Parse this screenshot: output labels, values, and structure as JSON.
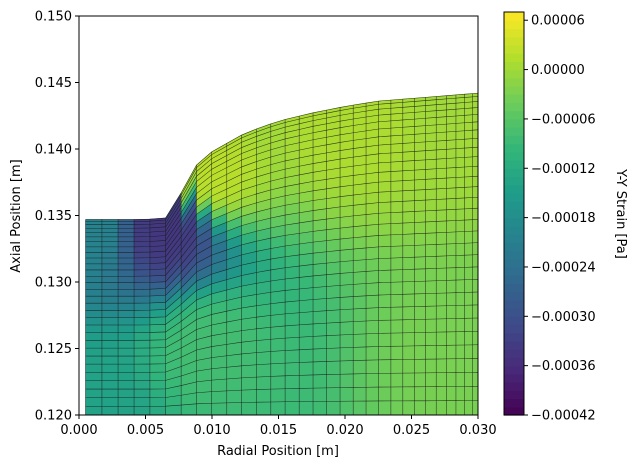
{
  "chart_data": {
    "type": "heatmap",
    "subtype": "finite-element mesh contour (tricontourf) with mesh overlay",
    "title": "",
    "xlabel": "Radial Position [m]",
    "ylabel": "Axial Position [m]",
    "colorbar_label": "Y-Y Strain [Pa]",
    "colormap": "viridis",
    "xlim": [
      0.0,
      0.03
    ],
    "ylim": [
      0.12,
      0.15
    ],
    "x_ticks": [
      0.0,
      0.005,
      0.01,
      0.015,
      0.02,
      0.025,
      0.03
    ],
    "x_tick_labels": [
      "0.000",
      "0.005",
      "0.010",
      "0.015",
      "0.020",
      "0.025",
      "0.030"
    ],
    "y_ticks": [
      0.12,
      0.125,
      0.13,
      0.135,
      0.14,
      0.145,
      0.15
    ],
    "y_tick_labels": [
      "0.120",
      "0.125",
      "0.130",
      "0.135",
      "0.140",
      "0.145",
      "0.150"
    ],
    "colorbar_range": [
      -0.00042,
      7e-05
    ],
    "colorbar_ticks": [
      6e-05,
      0.0,
      -6e-05,
      -0.00012,
      -0.00018,
      -0.00024,
      -0.0003,
      -0.00036,
      -0.00042
    ],
    "colorbar_tick_labels": [
      "0.00006",
      "0.00000",
      "−0.00006",
      "−0.00012",
      "−0.00018",
      "−0.00024",
      "−0.00030",
      "−0.00036",
      "−0.00042"
    ],
    "domain": {
      "x_min": 0.0005,
      "x_max": 0.03,
      "y_bottom": 0.12,
      "top_boundary": [
        [
          0.0005,
          0.1347
        ],
        [
          0.005,
          0.1347
        ],
        [
          0.0065,
          0.1348
        ],
        [
          0.0072,
          0.1355
        ],
        [
          0.0078,
          0.137
        ],
        [
          0.0085,
          0.1385
        ],
        [
          0.01,
          0.1398
        ],
        [
          0.0125,
          0.1412
        ],
        [
          0.015,
          0.1421
        ],
        [
          0.0175,
          0.1427
        ],
        [
          0.02,
          0.1432
        ],
        [
          0.0225,
          0.1436
        ],
        [
          0.025,
          0.1438
        ],
        [
          0.0275,
          0.144
        ],
        [
          0.03,
          0.1442
        ]
      ]
    },
    "field_samples": [
      {
        "x": 0.0065,
        "y": 0.134,
        "value": -0.00034
      },
      {
        "x": 0.0005,
        "y": 0.134,
        "value": -0.0002
      },
      {
        "x": 0.0005,
        "y": 0.121,
        "value": -0.00014
      },
      {
        "x": 0.01,
        "y": 0.125,
        "value": -8e-05
      },
      {
        "x": 0.03,
        "y": 0.125,
        "value": -3e-05
      },
      {
        "x": 0.01,
        "y": 0.138,
        "value": 2e-05
      },
      {
        "x": 0.02,
        "y": 0.142,
        "value": 1e-05
      },
      {
        "x": 0.03,
        "y": 0.143,
        "value": 0.0
      }
    ],
    "mesh": {
      "radial_divisions": 30,
      "axial_divisions": 30,
      "line_color": "#1a1a1a"
    }
  }
}
